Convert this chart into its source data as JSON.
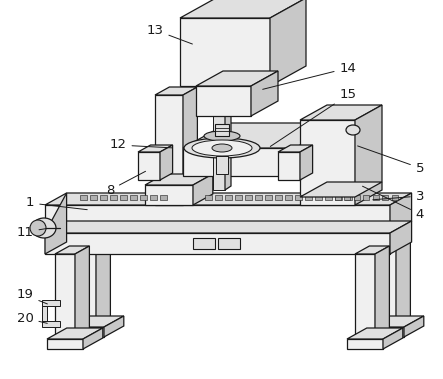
{
  "background_color": "#ffffff",
  "line_color": "#1a1a1a",
  "lw": 0.9,
  "figsize": [
    4.43,
    3.79
  ],
  "dpi": 100,
  "colors": {
    "white": "#ffffff",
    "light": "#f0f0f0",
    "mid": "#e0e0e0",
    "dark": "#c8c8c8",
    "darker": "#b0b0b0"
  }
}
